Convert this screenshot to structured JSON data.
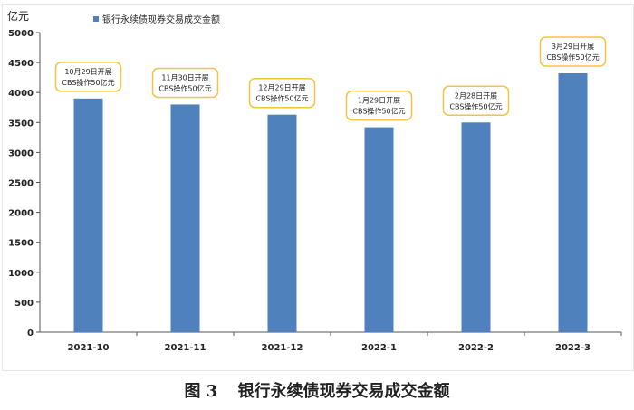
{
  "figure": {
    "caption_number": "图 3",
    "caption_title": "银行永续债现券交易成交金额"
  },
  "chart_data": {
    "type": "bar",
    "ylabel": "亿元",
    "categories": [
      "2021-10",
      "2021-11",
      "2021-12",
      "2022-1",
      "2022-2",
      "2022-3"
    ],
    "series": [
      {
        "name": "银行永续债现券交易成交金额",
        "color": "#4f81bd",
        "values": [
          3900,
          3800,
          3630,
          3420,
          3500,
          4320
        ]
      }
    ],
    "ylim": [
      0,
      5000
    ],
    "yticks": [
      0,
      500,
      1000,
      1500,
      2000,
      2500,
      3000,
      3500,
      4000,
      4500,
      5000
    ],
    "grid": false,
    "legend_position": "top-left",
    "annotations": [
      {
        "category": "2021-10",
        "line1": "10月29日开展",
        "line2": "CBS操作50亿元"
      },
      {
        "category": "2021-11",
        "line1": "11月30日开展",
        "line2": "CBS操作50亿元"
      },
      {
        "category": "2021-12",
        "line1": "12月29日开展",
        "line2": "CBS操作50亿元"
      },
      {
        "category": "2022-1",
        "line1": "1月29日开展",
        "line2": "CBS操作50亿元"
      },
      {
        "category": "2022-2",
        "line1": "2月28日开展",
        "line2": "CBS操作50亿元"
      },
      {
        "category": "2022-3",
        "line1": "3月29日开展",
        "line2": "CBS操作50亿元"
      }
    ],
    "annotation_border_color": "#f5c242"
  }
}
